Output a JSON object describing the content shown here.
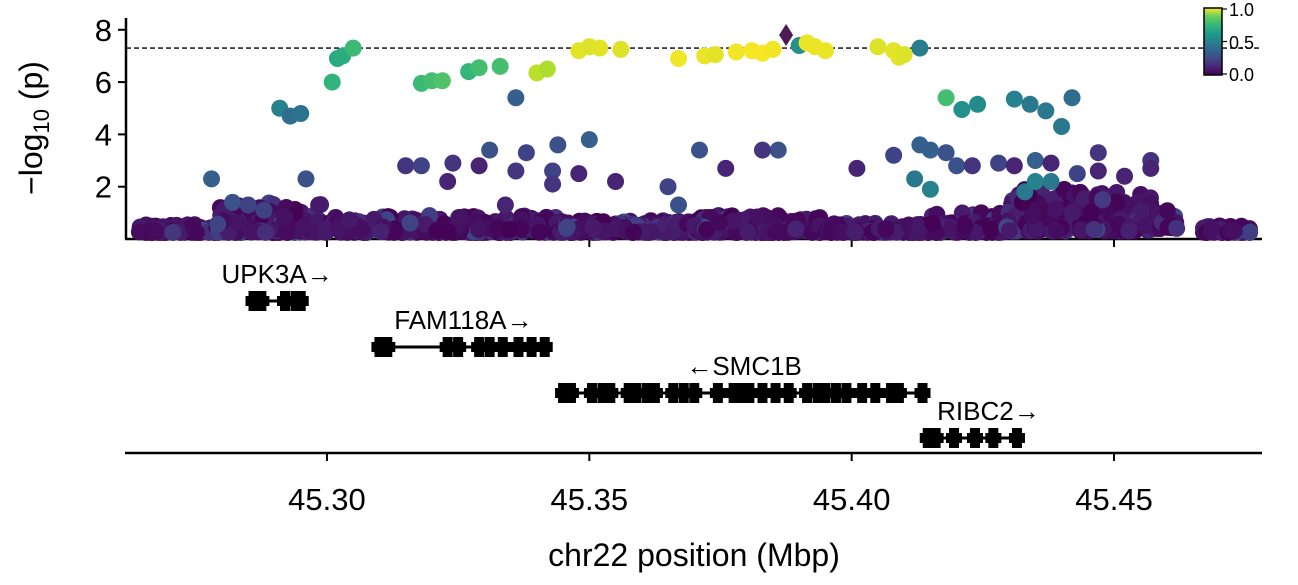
{
  "chart_data": {
    "type": "scatter",
    "xlabel": "chr22 position (Mbp)",
    "ylabel": "−log",
    "ylabel_sub": "10",
    "ylabel_tail": " (p)",
    "xlim": [
      45.2617,
      45.4782
    ],
    "ylim": [
      0,
      8.45
    ],
    "x_ticks": [
      45.3,
      45.35,
      45.4,
      45.45
    ],
    "x_tick_labels": [
      "45.30",
      "45.35",
      "45.40",
      "45.45"
    ],
    "y_ticks": [
      2,
      4,
      6,
      8
    ],
    "y_tick_labels": [
      "2",
      "4",
      "6",
      "8"
    ],
    "threshold": 7.3,
    "colorbar": {
      "label_values": [
        "1.0",
        "0.5",
        "0.0"
      ],
      "colormap": "viridis"
    },
    "lead_variant": {
      "x": 45.3875,
      "y": 7.8,
      "color": "#4b1a57"
    },
    "points_high": [
      [
        45.291,
        5.0,
        0.45
      ],
      [
        45.293,
        4.7,
        0.35
      ],
      [
        45.295,
        4.8,
        0.38
      ],
      [
        45.301,
        6.0,
        0.65
      ],
      [
        45.302,
        6.9,
        0.6
      ],
      [
        45.303,
        7.0,
        0.62
      ],
      [
        45.305,
        7.3,
        0.68
      ],
      [
        45.318,
        5.95,
        0.68
      ],
      [
        45.32,
        6.05,
        0.7
      ],
      [
        45.322,
        6.05,
        0.72
      ],
      [
        45.327,
        6.4,
        0.66
      ],
      [
        45.329,
        6.55,
        0.7
      ],
      [
        45.333,
        6.6,
        0.7
      ],
      [
        45.336,
        5.4,
        0.3
      ],
      [
        45.34,
        6.35,
        0.9
      ],
      [
        45.342,
        6.5,
        0.88
      ],
      [
        45.348,
        7.2,
        0.96
      ],
      [
        45.35,
        7.35,
        0.95
      ],
      [
        45.352,
        7.3,
        0.96
      ],
      [
        45.356,
        7.25,
        0.95
      ],
      [
        45.367,
        6.9,
        0.98
      ],
      [
        45.372,
        7.0,
        0.97
      ],
      [
        45.374,
        7.05,
        0.96
      ],
      [
        45.378,
        7.15,
        0.98
      ],
      [
        45.381,
        7.2,
        0.99
      ],
      [
        45.383,
        7.1,
        0.99
      ],
      [
        45.385,
        7.25,
        0.98
      ],
      [
        45.39,
        7.4,
        0.5
      ],
      [
        45.3915,
        7.5,
        0.97
      ],
      [
        45.393,
        7.35,
        0.97
      ],
      [
        45.395,
        7.2,
        0.97
      ],
      [
        45.405,
        7.35,
        0.95
      ],
      [
        45.408,
        7.2,
        0.96
      ],
      [
        45.409,
        6.95,
        0.96
      ],
      [
        45.41,
        7.05,
        0.95
      ],
      [
        45.413,
        7.3,
        0.42
      ],
      [
        45.418,
        5.4,
        0.7
      ],
      [
        45.421,
        4.95,
        0.5
      ],
      [
        45.424,
        5.15,
        0.48
      ],
      [
        45.431,
        5.35,
        0.45
      ],
      [
        45.434,
        5.15,
        0.4
      ],
      [
        45.437,
        4.9,
        0.4
      ],
      [
        45.44,
        4.3,
        0.4
      ],
      [
        45.442,
        5.4,
        0.35
      ]
    ],
    "points_mid": [
      [
        45.278,
        2.3,
        0.3
      ],
      [
        45.282,
        1.4,
        0.25
      ],
      [
        45.285,
        1.3,
        0.2
      ],
      [
        45.288,
        1.1,
        0.2
      ],
      [
        45.296,
        2.3,
        0.25
      ],
      [
        45.315,
        2.8,
        0.15
      ],
      [
        45.318,
        2.8,
        0.2
      ],
      [
        45.323,
        2.2,
        0.1
      ],
      [
        45.324,
        2.9,
        0.15
      ],
      [
        45.329,
        2.8,
        0.1
      ],
      [
        45.331,
        3.4,
        0.25
      ],
      [
        45.336,
        2.6,
        0.15
      ],
      [
        45.338,
        3.3,
        0.2
      ],
      [
        45.343,
        2.6,
        0.2
      ],
      [
        45.344,
        3.6,
        0.25
      ],
      [
        45.343,
        2.1,
        0.15
      ],
      [
        45.35,
        3.8,
        0.3
      ],
      [
        45.348,
        2.5,
        0.1
      ],
      [
        45.365,
        2.0,
        0.2
      ],
      [
        45.371,
        3.4,
        0.25
      ],
      [
        45.386,
        3.4,
        0.25
      ],
      [
        45.376,
        2.7,
        0.1
      ],
      [
        45.383,
        3.4,
        0.15
      ],
      [
        45.401,
        2.7,
        0.1
      ],
      [
        45.408,
        3.2,
        0.2
      ],
      [
        45.413,
        3.6,
        0.3
      ],
      [
        45.415,
        3.4,
        0.3
      ],
      [
        45.418,
        3.3,
        0.25
      ],
      [
        45.412,
        2.3,
        0.4
      ],
      [
        45.415,
        1.9,
        0.45
      ],
      [
        45.42,
        2.8,
        0.25
      ],
      [
        45.423,
        2.8,
        0.15
      ],
      [
        45.428,
        2.9,
        0.2
      ],
      [
        45.431,
        2.8,
        0.1
      ],
      [
        45.435,
        3.0,
        0.3
      ],
      [
        45.438,
        2.9,
        0.1
      ],
      [
        45.443,
        2.5,
        0.2
      ],
      [
        45.447,
        3.3,
        0.15
      ],
      [
        45.447,
        2.6,
        0.1
      ],
      [
        45.452,
        2.4,
        0.1
      ],
      [
        45.457,
        3.0,
        0.15
      ],
      [
        45.457,
        2.7,
        0.1
      ],
      [
        45.433,
        1.8,
        0.4
      ],
      [
        45.435,
        2.2,
        0.45
      ],
      [
        45.438,
        2.2,
        0.4
      ],
      [
        45.334,
        1.3,
        0.1
      ],
      [
        45.355,
        2.2,
        0.1
      ],
      [
        45.367,
        1.3,
        0.25
      ]
    ],
    "x_gene_rows_y_labels": [
      "row1",
      "row2",
      "row3",
      "row4"
    ],
    "genes": [
      {
        "name": "UPK3A→",
        "start": 45.2855,
        "end": 45.2955,
        "row": 0,
        "exons": [
          45.286,
          45.2875,
          45.292,
          45.294,
          45.295
        ]
      },
      {
        "name": "FAM118A→",
        "start": 45.3095,
        "end": 45.3425,
        "row": 1,
        "exons": [
          45.31,
          45.3115,
          45.323,
          45.325,
          45.329,
          45.331,
          45.3335,
          45.3365,
          45.339,
          45.3415
        ]
      },
      {
        "name": "←SMC1B",
        "start": 45.3445,
        "end": 45.4145,
        "row": 2,
        "exons": [
          45.345,
          45.3465,
          45.3505,
          45.3525,
          45.354,
          45.3575,
          45.359,
          45.361,
          45.3625,
          45.366,
          45.368,
          45.37,
          45.3745,
          45.3775,
          45.379,
          45.3805,
          45.383,
          45.3855,
          45.388,
          45.3915,
          45.3935,
          45.395,
          45.397,
          45.399,
          45.402,
          45.4045,
          45.4075,
          45.409,
          45.4135
        ]
      },
      {
        "name": "RIBC2→",
        "start": 45.414,
        "end": 45.4325,
        "row": 3,
        "exons": [
          45.4145,
          45.416,
          45.4195,
          45.4235,
          45.427,
          45.4315
        ]
      }
    ]
  }
}
